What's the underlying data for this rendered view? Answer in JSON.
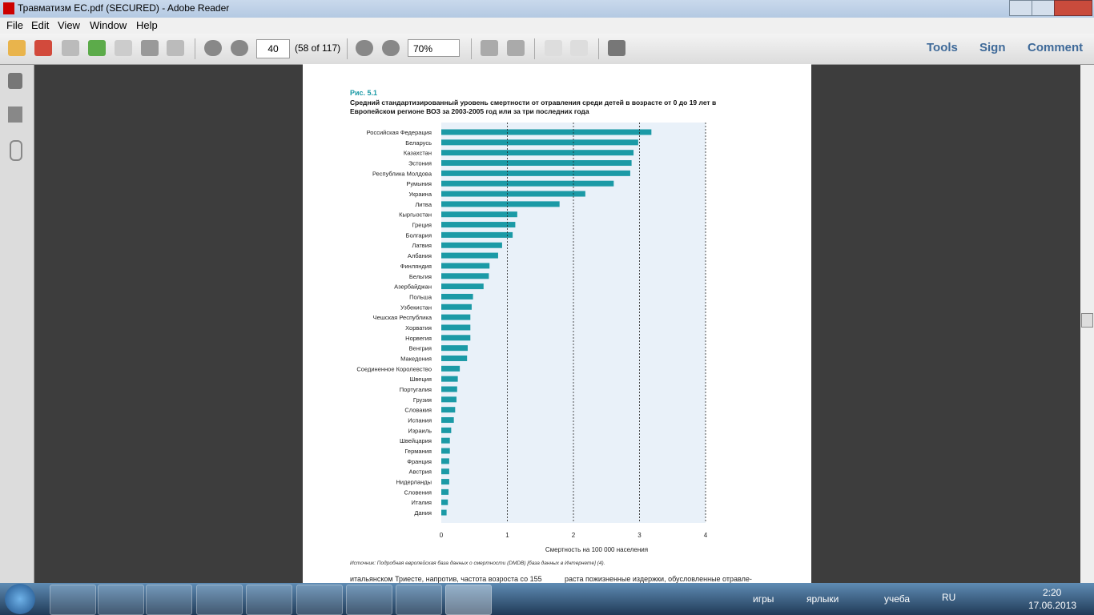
{
  "window": {
    "title": "Травматизм ЕС.pdf (SECURED) - Adobe Reader"
  },
  "menu": [
    "File",
    "Edit",
    "View",
    "Window",
    "Help"
  ],
  "toolbar": {
    "page": "40",
    "page_count": "(58 of 117)",
    "zoom": "70%",
    "panels": [
      "Tools",
      "Sign",
      "Comment"
    ]
  },
  "chart_data": {
    "type": "bar",
    "orientation": "horizontal",
    "figure_label": "Рис. 5.1",
    "title": [
      "Средний стандартизированный уровень смертности от отравления среди детей в возрасте от 0 до 19 лет в",
      "Европейском регионе ВОЗ за 2003-2005 год или за три последних года"
    ],
    "categories": [
      "Российская Федерация",
      "Беларусь",
      "Казахстан",
      "Эстония",
      "Республика Молдова",
      "Румыния",
      "Украина",
      "Литва",
      "Кыргызстан",
      "Греция",
      "Болгария",
      "Латвия",
      "Албания",
      "Финляндия",
      "Бельгия",
      "Азербайджан",
      "Польша",
      "Узбекистан",
      "Чешская Республика",
      "Хорватия",
      "Норвегия",
      "Венгрия",
      "Македония",
      "Соединенное Королевство",
      "Швеция",
      "Португалия",
      "Грузия",
      "Словакия",
      "Испания",
      "Израиль",
      "Швейцария",
      "Германия",
      "Франция",
      "Австрия",
      "Нидерланды",
      "Словения",
      "Италия",
      "Дания"
    ],
    "values": [
      3.18,
      2.98,
      2.91,
      2.88,
      2.86,
      2.61,
      2.18,
      1.79,
      1.15,
      1.12,
      1.08,
      0.92,
      0.86,
      0.73,
      0.72,
      0.64,
      0.48,
      0.46,
      0.44,
      0.44,
      0.44,
      0.4,
      0.39,
      0.28,
      0.25,
      0.24,
      0.23,
      0.21,
      0.19,
      0.15,
      0.13,
      0.13,
      0.12,
      0.12,
      0.12,
      0.11,
      0.1,
      0.08
    ],
    "color": "#1b9aa6",
    "xlim": [
      0,
      4
    ],
    "xticks": [
      0,
      1,
      2,
      3,
      4
    ],
    "xlabel": "Смертность на 100 000 населения",
    "grid": true,
    "source": "Источник: Подробная европейская база данных о смертности (DMDB) [база данных в Интернете] (4)."
  },
  "document": {
    "body_text": [
      "итальянском Триесте, напротив, частота возроста со 155",
      "раста пожизненные издержки, обусловленные отравле-"
    ]
  },
  "taskbar": {
    "toolbars": [
      "игры",
      "ярлыки",
      "учеба"
    ],
    "language": "RU",
    "time": "2:20",
    "date": "17.06.2013"
  }
}
